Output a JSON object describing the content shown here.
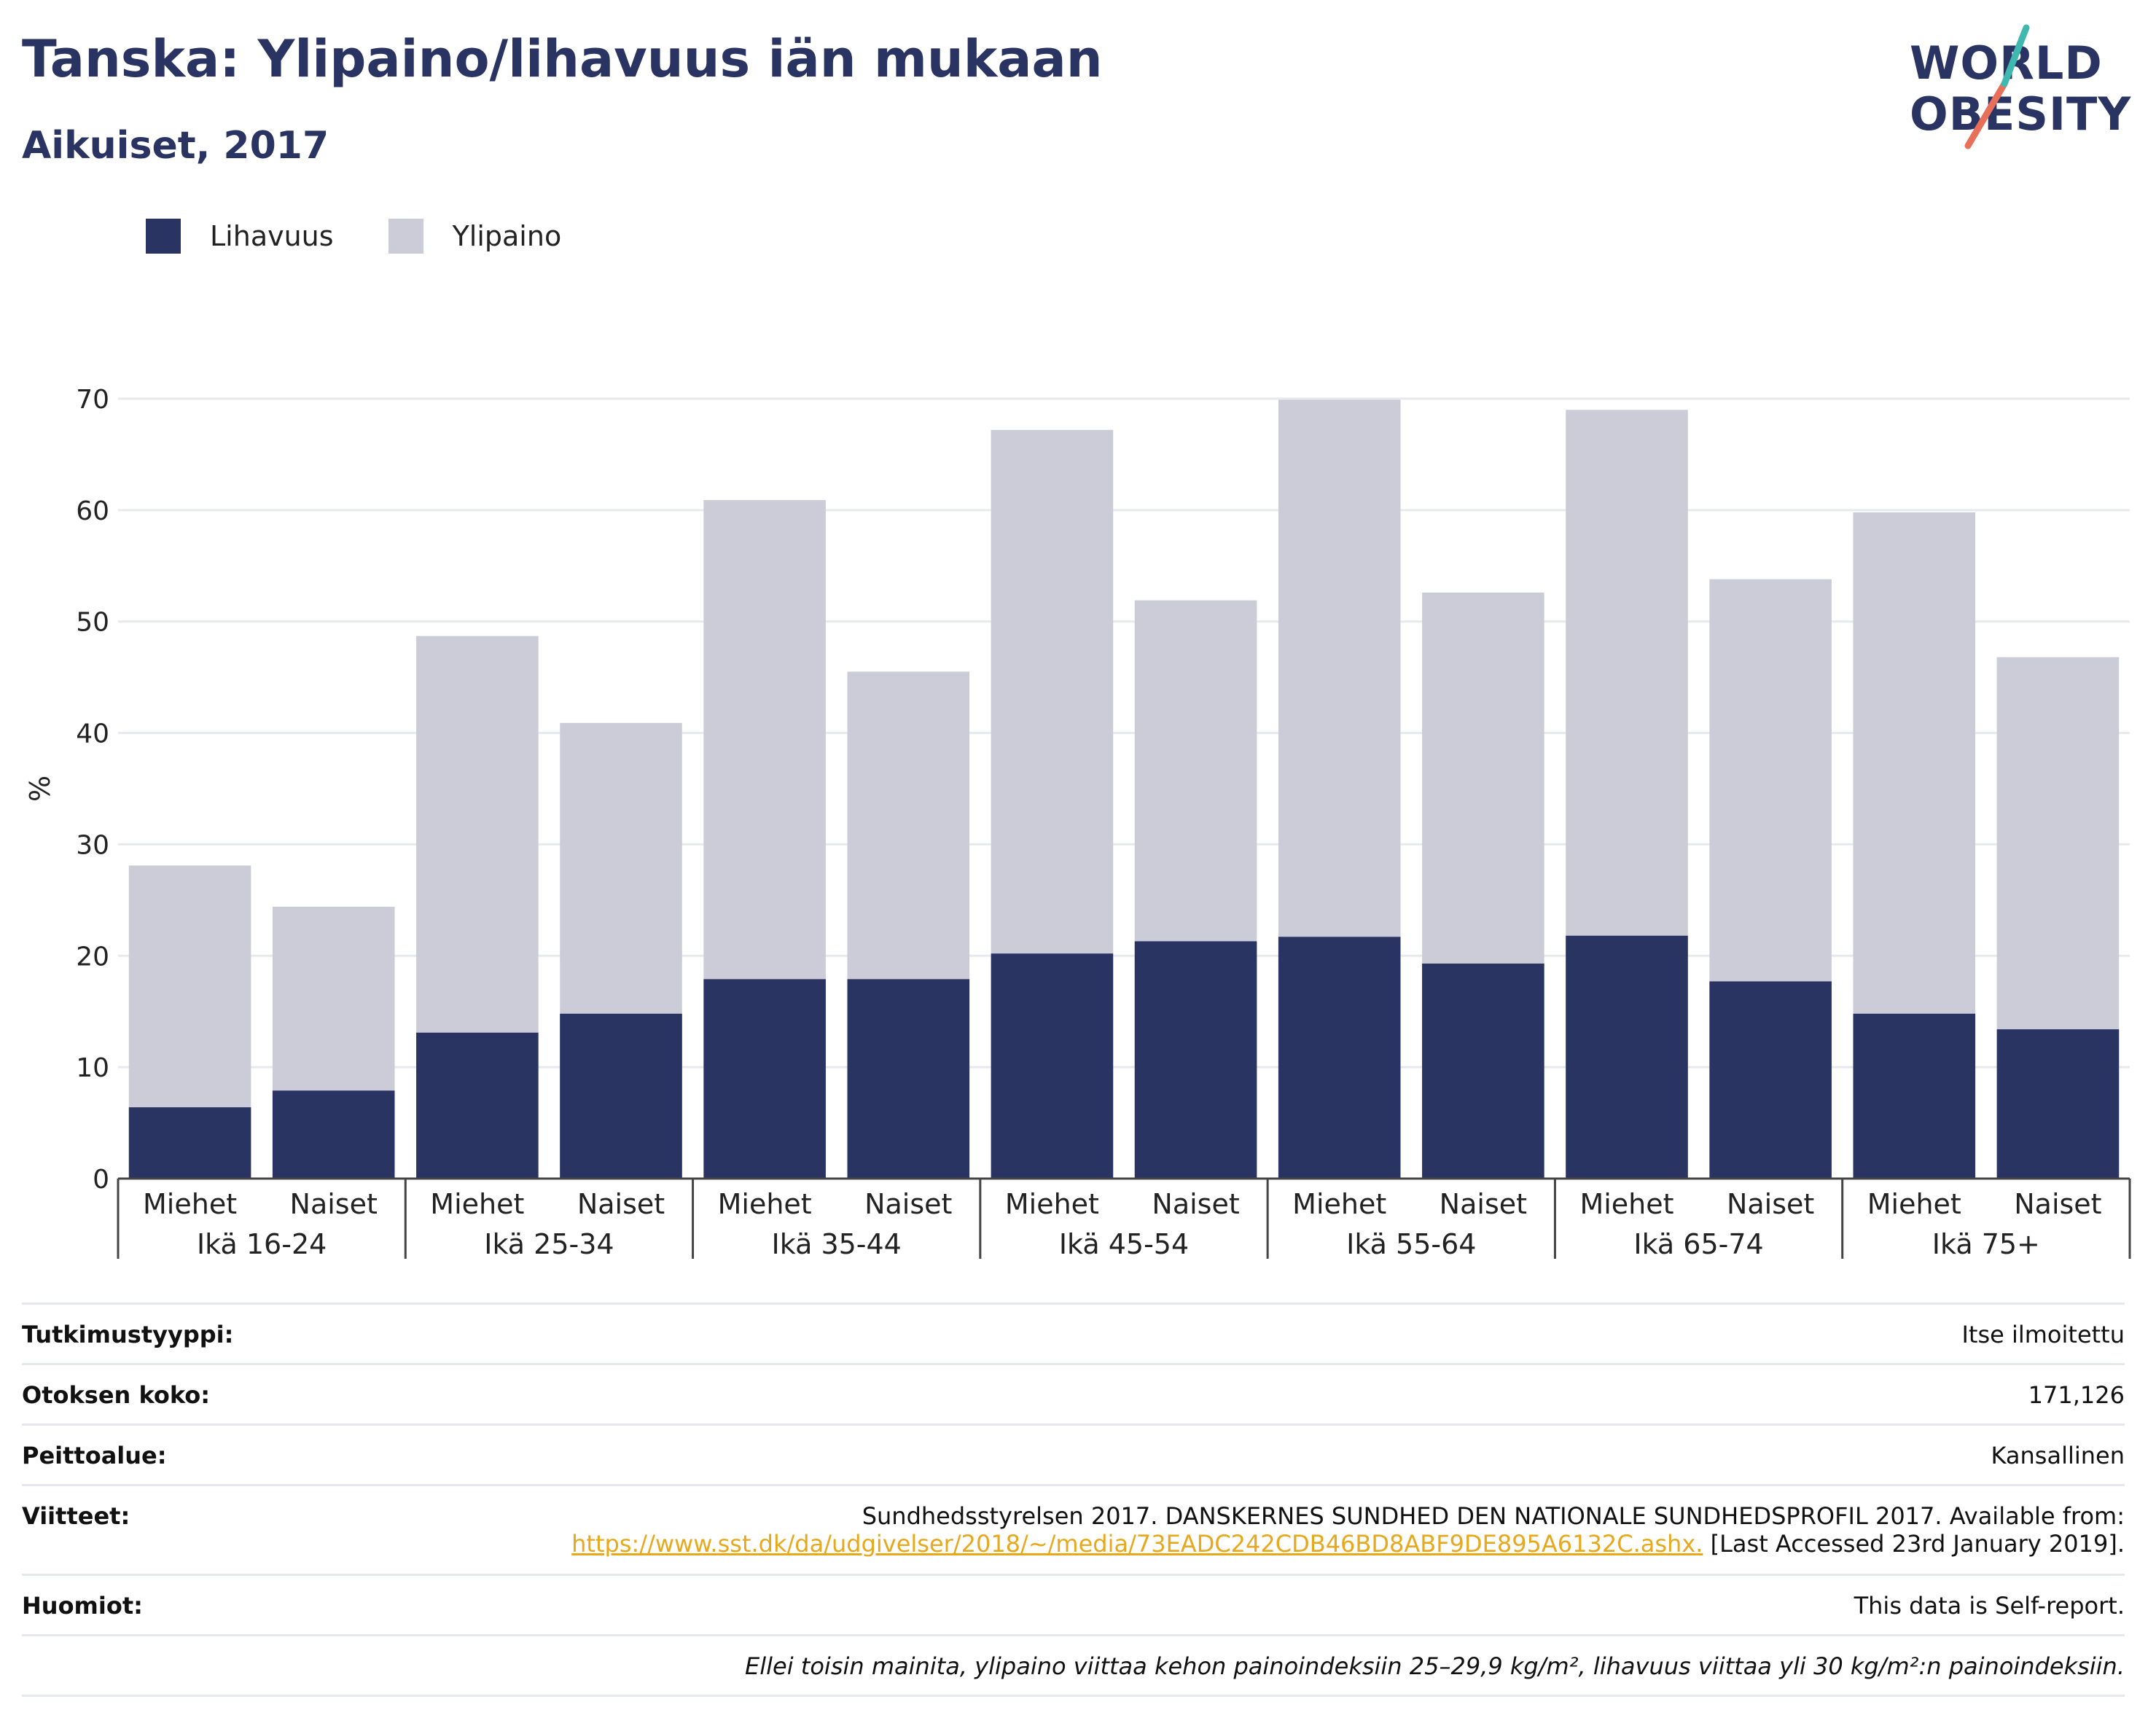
{
  "header": {
    "title": "Tanska: Ylipaino/lihavuus iän mukaan",
    "subtitle": "Aikuiset, 2017"
  },
  "logo": {
    "line1": "WORLD",
    "line2": "OBESITY"
  },
  "legend": [
    {
      "label": "Lihavuus",
      "color": "#2a3462"
    },
    {
      "label": "Ylipaino",
      "color": "#cbccd8"
    }
  ],
  "chart_data": {
    "type": "bar",
    "stacked": false,
    "overlay": true,
    "title": "Tanska: Ylipaino/lihavuus iän mukaan",
    "subtitle": "Aikuiset, 2017",
    "ylabel": "%",
    "ylim": [
      0,
      70
    ],
    "yticks": [
      0,
      10,
      20,
      30,
      40,
      50,
      60,
      70
    ],
    "grid": true,
    "legend_position": "top-left",
    "groups": [
      "Ikä 16-24",
      "Ikä 25-34",
      "Ikä 35-44",
      "Ikä 45-54",
      "Ikä 55-64",
      "Ikä 65-74",
      "Ikä 75+"
    ],
    "subcategories": [
      "Miehet",
      "Naiset"
    ],
    "categories": [
      "Miehet",
      "Naiset",
      "Miehet",
      "Naiset",
      "Miehet",
      "Naiset",
      "Miehet",
      "Naiset",
      "Miehet",
      "Naiset",
      "Miehet",
      "Naiset",
      "Miehet",
      "Naiset"
    ],
    "series": [
      {
        "name": "Ylipaino",
        "color": "#cbccd8",
        "values": [
          28.1,
          24.4,
          48.7,
          40.9,
          60.9,
          45.5,
          67.2,
          51.9,
          69.9,
          52.6,
          69.0,
          53.8,
          59.8,
          46.8
        ]
      },
      {
        "name": "Lihavuus",
        "color": "#2a3462",
        "values": [
          6.4,
          7.9,
          13.1,
          14.8,
          17.9,
          17.9,
          20.2,
          21.3,
          21.7,
          19.3,
          21.8,
          17.7,
          14.8,
          13.4
        ]
      }
    ]
  },
  "info": {
    "study_type": {
      "label": "Tutkimustyyppi:",
      "value": "Itse ilmoitettu"
    },
    "sample_size": {
      "label": "Otoksen koko:",
      "value": "171,126"
    },
    "coverage": {
      "label": "Peittoalue:",
      "value": "Kansallinen"
    },
    "references": {
      "label": "Viitteet:",
      "line1": "Sundhedsstyrelsen 2017. DANSKERNES SUNDHED DEN NATIONALE SUNDHEDSPROFIL 2017. Available from:",
      "link": "https://www.sst.dk/da/udgivelser/2018/~/media/73EADC242CDB46BD8ABF9DE895A6132C.ashx.",
      "accessed": "[Last Accessed 23rd January 2019]."
    },
    "notes": {
      "label": "Huomiot:",
      "value": "This data is Self-report."
    },
    "footnote": "Ellei toisin mainita, ylipaino viittaa kehon painoindeksiin 25–29,9 kg/m², lihavuus viittaa yli 30 kg/m²:n painoindeksiin."
  }
}
